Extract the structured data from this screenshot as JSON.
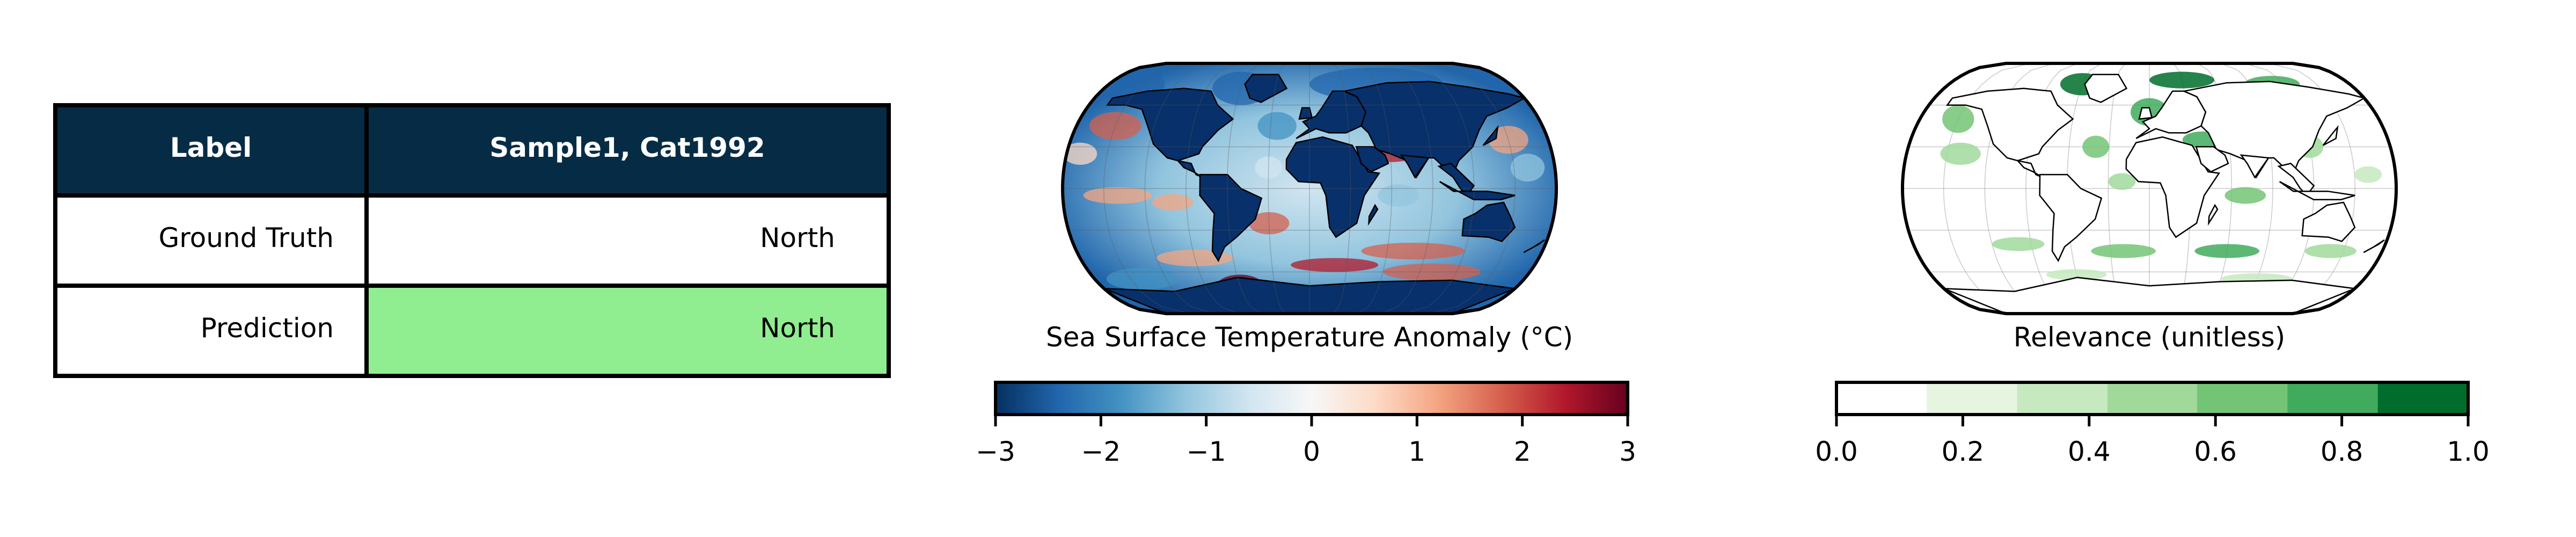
{
  "table": {
    "headers": [
      "Label",
      "Sample1, Cat1992"
    ],
    "rows": [
      {
        "label": "Ground Truth",
        "value": "North"
      },
      {
        "label": "Prediction",
        "value": "North"
      }
    ],
    "header_color": "#062c45",
    "prediction_highlight_color": "#90ee90"
  },
  "chart_data": [
    {
      "type": "heatmap",
      "projection": "robinson",
      "title": "",
      "xlabel": "Sea Surface Temperature Anomaly (°C)",
      "colormap": "RdBu_r",
      "colorbar_ticks": [
        -3,
        -2,
        -1,
        0,
        1,
        2,
        3
      ],
      "colorbar_labels": [
        "−3",
        "−2",
        "−1",
        "0",
        "1",
        "2",
        "3"
      ],
      "vlim": [
        -3,
        3
      ],
      "colorbar_stops": [
        "#053061",
        "#2166ac",
        "#4393c3",
        "#92c5de",
        "#d1e5f0",
        "#f7f7f7",
        "#fddbc7",
        "#f4a582",
        "#d6604d",
        "#b2182b",
        "#67001f"
      ]
    },
    {
      "type": "heatmap",
      "projection": "robinson",
      "title": "",
      "xlabel": "Relevance (unitless)",
      "colormap": "Greens",
      "colorbar_ticks": [
        0.0,
        0.2,
        0.4,
        0.6,
        0.8,
        1.0
      ],
      "colorbar_labels": [
        "0.0",
        "0.2",
        "0.4",
        "0.6",
        "0.8",
        "1.0"
      ],
      "vlim": [
        0,
        1
      ],
      "boundaries": [
        0,
        0.143,
        0.286,
        0.429,
        0.571,
        0.714,
        0.857,
        1.0
      ],
      "colorbar_bins": [
        "#ffffff",
        "#e5f5e0",
        "#c7e9c0",
        "#a1d99b",
        "#74c476",
        "#41ab5d",
        "#006d2c"
      ]
    }
  ]
}
